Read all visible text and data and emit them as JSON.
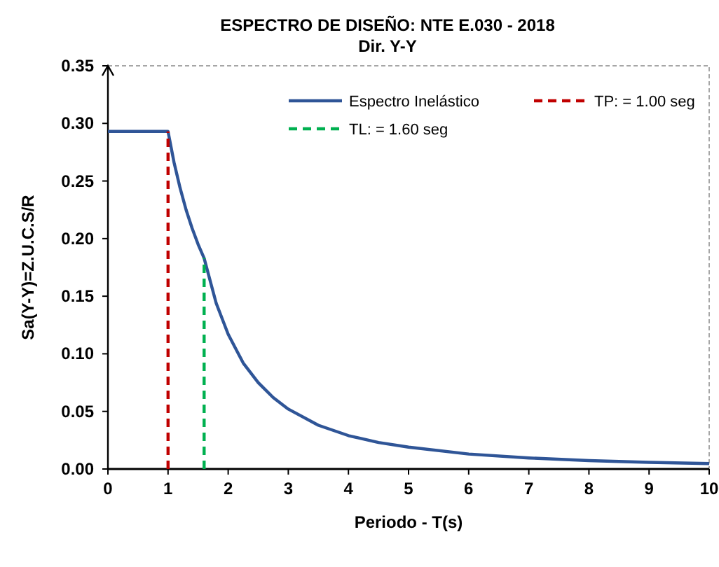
{
  "chart_data": {
    "type": "line",
    "title": "ESPECTRO  DE DISEÑO:  NTE E.030 - 2018",
    "subtitle": "Dir. Y-Y",
    "xlabel": "Periodo - T(s)",
    "ylabel": "Sa(Y-Y)=Z.U.C.S/R",
    "series": [
      {
        "name": "Espectro Inelástico",
        "color": "#2f5597",
        "line_style": "solid",
        "x": [
          0,
          1,
          1.1,
          1.2,
          1.3,
          1.4,
          1.5,
          1.6,
          1.8,
          2,
          2.25,
          2.5,
          2.75,
          3,
          3.5,
          4,
          4.5,
          5,
          6,
          7,
          8,
          9,
          10
        ],
        "values": [
          0.293,
          0.293,
          0.266,
          0.244,
          0.225,
          0.209,
          0.195,
          0.183,
          0.144,
          0.117,
          0.092,
          0.075,
          0.062,
          0.052,
          0.038,
          0.029,
          0.023,
          0.019,
          0.013,
          0.0096,
          0.0073,
          0.0058,
          0.0047
        ]
      },
      {
        "name": "TP: = 1.00 seg",
        "color": "#c00000",
        "line_style": "dashed",
        "x": [
          1,
          1
        ],
        "values": [
          0,
          0.293
        ]
      },
      {
        "name": "TL: = 1.60 seg",
        "color": "#00b050",
        "line_style": "dashed",
        "x": [
          1.6,
          1.6
        ],
        "values": [
          0,
          0.183
        ]
      }
    ],
    "xlim": [
      0,
      10
    ],
    "xticks": [
      0,
      1,
      2,
      3,
      4,
      5,
      6,
      7,
      8,
      9,
      10
    ],
    "ylim": [
      0,
      0.35
    ],
    "yticks": [
      {
        "value": 0,
        "label": "0.00"
      },
      {
        "value": 0.05,
        "label": "0.05"
      },
      {
        "value": 0.1,
        "label": "0.10"
      },
      {
        "value": 0.15,
        "label": "0.15"
      },
      {
        "value": 0.2,
        "label": "0.20"
      },
      {
        "value": 0.25,
        "label": "0.25"
      },
      {
        "value": 0.3,
        "label": "0.30"
      },
      {
        "value": 0.35,
        "label": "0.35"
      }
    ],
    "grid": false,
    "legend": "top right",
    "marker": "none"
  }
}
